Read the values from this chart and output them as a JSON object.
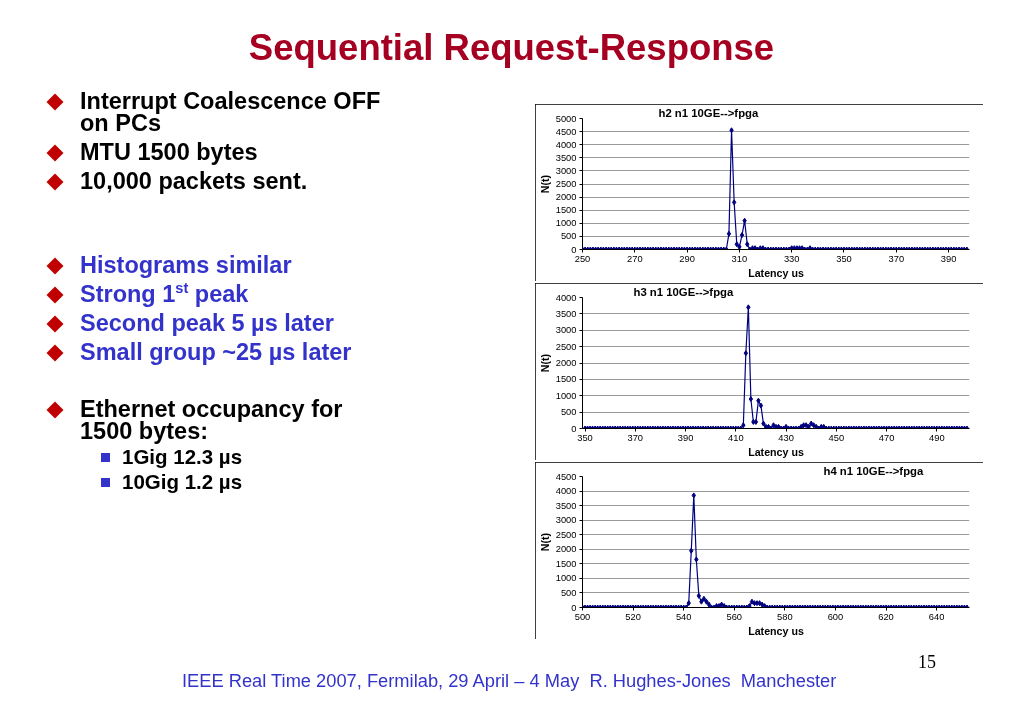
{
  "chart_data": [
    {
      "type": "other",
      "title": "Sequential Request-Response",
      "annotations": [
        "Interrupt Coalescence OFF on PCs",
        "MTU 1500 bytes",
        "10,000 packets sent.",
        "Histograms similar",
        "Strong 1$^{st}$ peak",
        "Second peak 5 µs later",
        "Small group ~25 µs later",
        "Ethernet occupancy for 1500 bytes:",
        "1Gig 12.3 µs",
        "10Gig 1.2 µs",
        "IEEE Real Time 2007, Fermilab, 29 April – 4 May  R. Hughes-Jones  Manchester",
        "15"
      ]
    },
    {
      "type": "line",
      "title": "h2 n1 10GE-->fpga",
      "xlabel": "Latency us",
      "ylabel": "N(t)",
      "color": "#000080",
      "marker": "diamond",
      "grid": "y",
      "xlim": [
        250,
        398
      ],
      "ylim": [
        0,
        5000
      ],
      "xticks": [
        250,
        270,
        290,
        310,
        330,
        350,
        370,
        390
      ],
      "yticks": [
        0,
        500,
        1000,
        1500,
        2000,
        2500,
        3000,
        3500,
        4000,
        4500,
        5000
      ],
      "x": [
        250,
        251,
        252,
        253,
        254,
        255,
        256,
        257,
        258,
        259,
        260,
        261,
        262,
        263,
        264,
        265,
        266,
        267,
        268,
        269,
        270,
        271,
        272,
        273,
        274,
        275,
        276,
        277,
        278,
        279,
        280,
        281,
        282,
        283,
        284,
        285,
        286,
        287,
        288,
        289,
        290,
        291,
        292,
        293,
        294,
        295,
        296,
        297,
        298,
        299,
        300,
        301,
        302,
        303,
        304,
        305,
        306,
        307,
        308,
        309,
        310,
        311,
        312,
        313,
        314,
        315,
        316,
        317,
        318,
        319,
        320,
        321,
        322,
        323,
        324,
        325,
        326,
        327,
        328,
        329,
        330,
        331,
        332,
        333,
        334,
        335,
        336,
        337,
        338,
        339,
        340,
        341,
        342,
        343,
        344,
        345,
        346,
        347,
        348,
        349,
        350,
        351,
        352,
        353,
        354,
        355,
        356,
        357,
        358,
        359,
        360,
        361,
        362,
        363,
        364,
        365,
        366,
        367,
        368,
        369,
        370,
        371,
        372,
        373,
        374,
        375,
        376,
        377,
        378,
        379,
        380,
        381,
        382,
        383,
        384,
        385,
        386,
        387,
        388,
        389,
        390,
        391,
        392,
        393,
        394,
        395,
        396,
        397
      ],
      "values": [
        0,
        0,
        0,
        0,
        0,
        0,
        0,
        0,
        0,
        0,
        0,
        0,
        0,
        0,
        0,
        0,
        0,
        0,
        0,
        0,
        0,
        0,
        0,
        0,
        0,
        0,
        0,
        0,
        0,
        0,
        0,
        0,
        0,
        0,
        0,
        0,
        0,
        0,
        0,
        0,
        0,
        0,
        0,
        0,
        0,
        0,
        0,
        0,
        0,
        0,
        0,
        0,
        0,
        0,
        0,
        0,
        600,
        4550,
        1800,
        200,
        100,
        550,
        1100,
        200,
        0,
        50,
        50,
        0,
        50,
        50,
        0,
        0,
        0,
        0,
        0,
        0,
        0,
        0,
        0,
        0,
        50,
        50,
        50,
        50,
        50,
        0,
        0,
        50,
        0,
        0,
        0,
        0,
        0,
        0,
        0,
        0,
        0,
        0,
        0,
        0,
        0,
        0,
        0,
        0,
        0,
        0,
        0,
        0,
        0,
        0,
        0,
        0,
        0,
        0,
        0,
        0,
        0,
        0,
        0,
        0,
        0,
        0,
        0,
        0,
        0,
        0,
        0,
        0,
        0,
        0,
        0,
        0,
        0,
        0,
        0,
        0,
        0,
        0,
        0,
        0,
        0,
        0,
        0,
        0,
        0,
        0,
        0,
        0
      ]
    },
    {
      "type": "line",
      "title": "h3 n1 10GE-->fpga",
      "xlabel": "Latency us",
      "ylabel": "N(t)",
      "color": "#000080",
      "marker": "diamond",
      "grid": "y",
      "xlim": [
        349,
        503
      ],
      "ylim": [
        0,
        4000
      ],
      "xticks": [
        350,
        370,
        390,
        410,
        430,
        450,
        470,
        490
      ],
      "yticks": [
        0,
        500,
        1000,
        1500,
        2000,
        2500,
        3000,
        3500,
        4000
      ],
      "x": [
        350,
        351,
        352,
        353,
        354,
        355,
        356,
        357,
        358,
        359,
        360,
        361,
        362,
        363,
        364,
        365,
        366,
        367,
        368,
        369,
        370,
        371,
        372,
        373,
        374,
        375,
        376,
        377,
        378,
        379,
        380,
        381,
        382,
        383,
        384,
        385,
        386,
        387,
        388,
        389,
        390,
        391,
        392,
        393,
        394,
        395,
        396,
        397,
        398,
        399,
        400,
        401,
        402,
        403,
        404,
        405,
        406,
        407,
        408,
        409,
        410,
        411,
        412,
        413,
        414,
        415,
        416,
        417,
        418,
        419,
        420,
        421,
        422,
        423,
        424,
        425,
        426,
        427,
        428,
        429,
        430,
        431,
        432,
        433,
        434,
        435,
        436,
        437,
        438,
        439,
        440,
        441,
        442,
        443,
        444,
        445,
        446,
        447,
        448,
        449,
        450,
        451,
        452,
        453,
        454,
        455,
        456,
        457,
        458,
        459,
        460,
        461,
        462,
        463,
        464,
        465,
        466,
        467,
        468,
        469,
        470,
        471,
        472,
        473,
        474,
        475,
        476,
        477,
        478,
        479,
        480,
        481,
        482,
        483,
        484,
        485,
        486,
        487,
        488,
        489,
        490,
        491,
        492,
        493,
        494,
        495,
        496,
        497,
        498,
        499,
        500,
        501,
        502
      ],
      "values": [
        0,
        0,
        0,
        0,
        0,
        0,
        0,
        0,
        0,
        0,
        0,
        0,
        0,
        0,
        0,
        0,
        0,
        0,
        0,
        0,
        0,
        0,
        0,
        0,
        0,
        0,
        0,
        0,
        0,
        0,
        0,
        0,
        0,
        0,
        0,
        0,
        0,
        0,
        0,
        0,
        0,
        0,
        0,
        0,
        0,
        0,
        0,
        0,
        0,
        0,
        0,
        0,
        0,
        0,
        0,
        0,
        0,
        0,
        0,
        0,
        0,
        0,
        0,
        100,
        2300,
        3700,
        900,
        200,
        200,
        850,
        700,
        150,
        50,
        50,
        0,
        100,
        50,
        50,
        0,
        0,
        50,
        0,
        0,
        0,
        0,
        0,
        50,
        100,
        100,
        50,
        150,
        100,
        50,
        0,
        50,
        50,
        0,
        0,
        0,
        0,
        0,
        0,
        0,
        0,
        0,
        0,
        0,
        0,
        0,
        0,
        0,
        0,
        0,
        0,
        0,
        0,
        0,
        0,
        0,
        0,
        0,
        0,
        0,
        0,
        0,
        0,
        0,
        0,
        0,
        0,
        0,
        0,
        0,
        0,
        0,
        0,
        0,
        0,
        0,
        0,
        0,
        0,
        0,
        0,
        0,
        0,
        0,
        0,
        0,
        0,
        0,
        0,
        0
      ]
    },
    {
      "type": "line",
      "title": "h4 n1 10GE-->fpga",
      "xlabel": "Latency us",
      "ylabel": "N(t)",
      "color": "#000080",
      "marker": "diamond",
      "grid": "y",
      "xlim": [
        500,
        653
      ],
      "ylim": [
        0,
        4500
      ],
      "xticks": [
        500,
        520,
        540,
        560,
        580,
        600,
        620,
        640
      ],
      "yticks": [
        0,
        500,
        1000,
        1500,
        2000,
        2500,
        3000,
        3500,
        4000,
        4500
      ],
      "x": [
        500,
        501,
        502,
        503,
        504,
        505,
        506,
        507,
        508,
        509,
        510,
        511,
        512,
        513,
        514,
        515,
        516,
        517,
        518,
        519,
        520,
        521,
        522,
        523,
        524,
        525,
        526,
        527,
        528,
        529,
        530,
        531,
        532,
        533,
        534,
        535,
        536,
        537,
        538,
        539,
        540,
        541,
        542,
        543,
        544,
        545,
        546,
        547,
        548,
        549,
        550,
        551,
        552,
        553,
        554,
        555,
        556,
        557,
        558,
        559,
        560,
        561,
        562,
        563,
        564,
        565,
        566,
        567,
        568,
        569,
        570,
        571,
        572,
        573,
        574,
        575,
        576,
        577,
        578,
        579,
        580,
        581,
        582,
        583,
        584,
        585,
        586,
        587,
        588,
        589,
        590,
        591,
        592,
        593,
        594,
        595,
        596,
        597,
        598,
        599,
        600,
        601,
        602,
        603,
        604,
        605,
        606,
        607,
        608,
        609,
        610,
        611,
        612,
        613,
        614,
        615,
        616,
        617,
        618,
        619,
        620,
        621,
        622,
        623,
        624,
        625,
        626,
        627,
        628,
        629,
        630,
        631,
        632,
        633,
        634,
        635,
        636,
        637,
        638,
        639,
        640,
        641,
        642,
        643,
        644,
        645,
        646,
        647,
        648,
        649,
        650,
        651,
        652
      ],
      "values": [
        0,
        0,
        0,
        0,
        0,
        0,
        0,
        0,
        0,
        0,
        0,
        0,
        0,
        0,
        0,
        0,
        0,
        0,
        0,
        0,
        0,
        0,
        0,
        0,
        0,
        0,
        0,
        0,
        0,
        0,
        0,
        0,
        0,
        0,
        0,
        0,
        0,
        0,
        0,
        0,
        0,
        0,
        150,
        1950,
        3850,
        1650,
        400,
        200,
        300,
        200,
        100,
        0,
        0,
        50,
        50,
        100,
        50,
        0,
        0,
        0,
        0,
        0,
        0,
        0,
        0,
        0,
        50,
        200,
        150,
        150,
        150,
        100,
        50,
        0,
        0,
        0,
        0,
        0,
        0,
        0,
        0,
        0,
        0,
        0,
        0,
        0,
        0,
        0,
        0,
        0,
        0,
        0,
        0,
        0,
        0,
        0,
        0,
        0,
        0,
        0,
        0,
        0,
        0,
        0,
        0,
        0,
        0,
        0,
        0,
        0,
        0,
        0,
        0,
        0,
        0,
        0,
        0,
        0,
        0,
        0,
        0,
        0,
        0,
        0,
        0,
        0,
        0,
        0,
        0,
        0,
        0,
        0,
        0,
        0,
        0,
        0,
        0,
        0,
        0,
        0,
        0,
        0,
        0,
        0,
        0,
        0,
        0,
        0,
        0,
        0,
        0,
        0,
        0
      ]
    }
  ]
}
